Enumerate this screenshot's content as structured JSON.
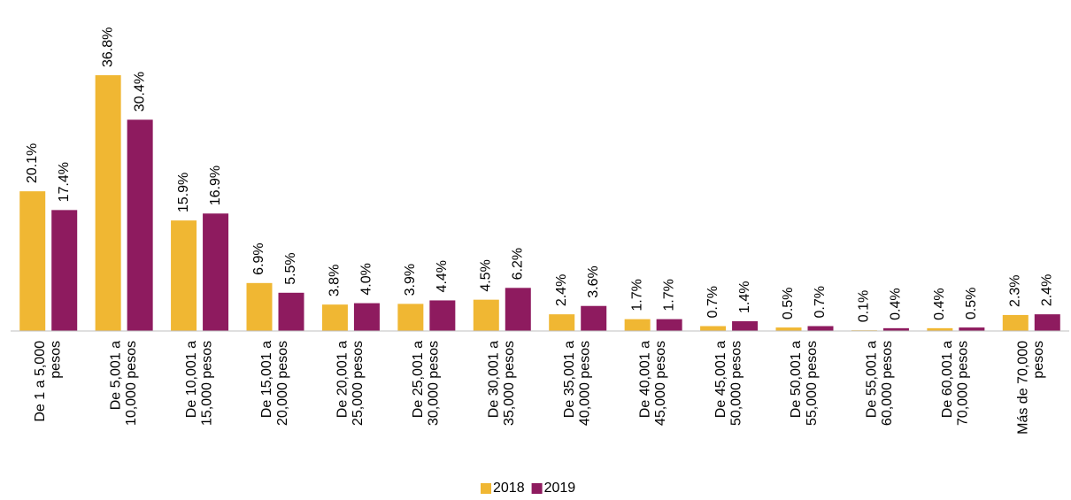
{
  "chart_data": {
    "type": "bar",
    "categories": [
      "De 1 a 5,000\npesos",
      "De 5,001 a\n10,000 pesos",
      "De 10,001 a\n15,000 pesos",
      "De 15,001 a\n20,000 pesos",
      "De 20,001 a\n25,000 pesos",
      "De 25,001 a\n30,000 pesos",
      "De 30,001 a\n35,000 pesos",
      "De 35,001 a\n40,000 pesos",
      "De 40,001 a\n45,000 pesos",
      "De 45,001 a\n50,000 pesos",
      "De 50,001 a\n55,000 pesos",
      "De 55,001 a\n60,000 pesos",
      "De 60,001 a\n70,000 pesos",
      "Más de 70,000\npesos"
    ],
    "series": [
      {
        "name": "2018",
        "color": "#f0b733",
        "values": [
          20.1,
          36.8,
          15.9,
          6.9,
          3.8,
          3.9,
          4.5,
          2.4,
          1.7,
          0.7,
          0.5,
          0.1,
          0.4,
          2.3
        ],
        "value_labels": [
          "20.1%",
          "36.8%",
          "15.9%",
          "6.9%",
          "3.8%",
          "3.9%",
          "4.5%",
          "2.4%",
          "1.7%",
          "0.7%",
          "0.5%",
          "0.1%",
          "0.4%",
          "2.3%"
        ]
      },
      {
        "name": "2019",
        "color": "#8e1b5f",
        "values": [
          17.4,
          30.4,
          16.9,
          5.5,
          4.0,
          4.4,
          6.2,
          3.6,
          1.7,
          1.4,
          0.7,
          0.4,
          0.5,
          2.4
        ],
        "value_labels": [
          "17.4%",
          "30.4%",
          "16.9%",
          "5.5%",
          "4.0%",
          "4.4%",
          "6.2%",
          "3.6%",
          "1.7%",
          "1.4%",
          "0.7%",
          "0.4%",
          "0.5%",
          "2.4%"
        ]
      }
    ],
    "legend": "bottom"
  }
}
